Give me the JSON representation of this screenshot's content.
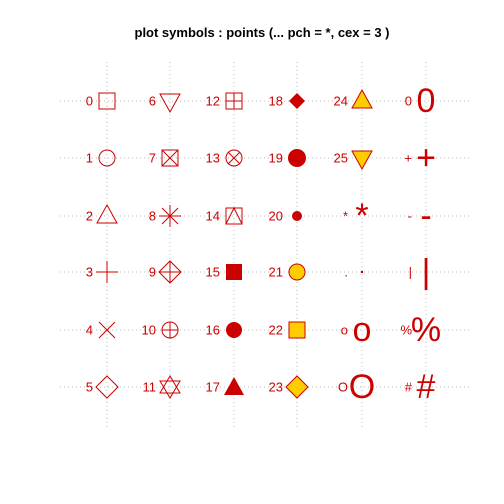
{
  "chart_data": {
    "type": "scatter",
    "title": "plot symbols :  points (...  pch = *, cex = 3 )",
    "xlabel": "",
    "ylabel": "",
    "grid": true,
    "colors": {
      "stroke": "#cc0000",
      "fill": "#ffcc00",
      "grid": "#bdbdbd",
      "title": "#000000"
    },
    "columns": [
      {
        "symbols": [
          {
            "label": "0",
            "kind": "square"
          },
          {
            "label": "1",
            "kind": "circle"
          },
          {
            "label": "2",
            "kind": "triangle-up"
          },
          {
            "label": "3",
            "kind": "plus"
          },
          {
            "label": "4",
            "kind": "cross"
          },
          {
            "label": "5",
            "kind": "diamond"
          }
        ]
      },
      {
        "symbols": [
          {
            "label": "6",
            "kind": "triangle-down"
          },
          {
            "label": "7",
            "kind": "square-cross"
          },
          {
            "label": "8",
            "kind": "asterisk"
          },
          {
            "label": "9",
            "kind": "diamond-plus"
          },
          {
            "label": "10",
            "kind": "circle-plus"
          },
          {
            "label": "11",
            "kind": "star-of-david"
          }
        ]
      },
      {
        "symbols": [
          {
            "label": "12",
            "kind": "square-plus"
          },
          {
            "label": "13",
            "kind": "circle-cross"
          },
          {
            "label": "14",
            "kind": "square-triangle"
          },
          {
            "label": "15",
            "kind": "filled-square"
          },
          {
            "label": "16",
            "kind": "filled-circle"
          },
          {
            "label": "17",
            "kind": "filled-triangle"
          }
        ]
      },
      {
        "symbols": [
          {
            "label": "18",
            "kind": "filled-diamond-small"
          },
          {
            "label": "19",
            "kind": "filled-circle-large"
          },
          {
            "label": "20",
            "kind": "filled-circle-small"
          },
          {
            "label": "21",
            "kind": "fill-circle"
          },
          {
            "label": "22",
            "kind": "fill-square"
          },
          {
            "label": "23",
            "kind": "fill-diamond"
          }
        ]
      },
      {
        "symbols": [
          {
            "label": "24",
            "kind": "fill-triangle-up"
          },
          {
            "label": "25",
            "kind": "fill-triangle-down"
          },
          {
            "label": "*",
            "kind": "text",
            "text": "*"
          },
          {
            "label": ".",
            "kind": "dot"
          },
          {
            "label": "o",
            "kind": "text",
            "text": "o"
          },
          {
            "label": "O",
            "kind": "text",
            "text": "O"
          }
        ]
      },
      {
        "symbols": [
          {
            "label": "0",
            "kind": "text",
            "text": "0"
          },
          {
            "label": "+",
            "kind": "text",
            "text": "+"
          },
          {
            "label": "-",
            "kind": "text",
            "text": "-"
          },
          {
            "label": "|",
            "kind": "text",
            "text": "|"
          },
          {
            "label": "%",
            "kind": "text",
            "text": "%"
          },
          {
            "label": "#",
            "kind": "text",
            "text": "#"
          }
        ]
      }
    ]
  }
}
